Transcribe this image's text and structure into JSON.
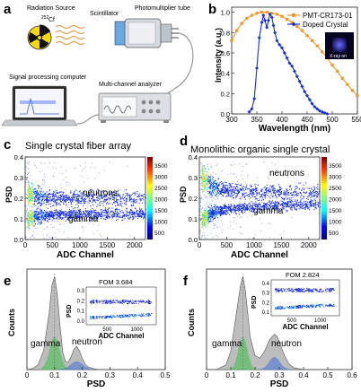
{
  "panels": {
    "a": {
      "label": "a",
      "radiation_source": "Radiation Source",
      "isotope_mass": "252",
      "isotope": "Cf",
      "scintillator": "Scintillator",
      "pmt": "Photomultiplier tube",
      "computer": "Signal processing computer",
      "analyzer": "Multi-channel analyzer"
    },
    "b": {
      "label": "b",
      "inset_text": "X-ray on",
      "colors": {
        "pmt": "#f0962c",
        "crystal": "#1a2fd0"
      }
    },
    "c": {
      "label": "c",
      "title": "Single crystal fiber array",
      "neutrons": "neutrons",
      "gamma": "gamma"
    },
    "d": {
      "label": "d",
      "title": "Monolithic organic single crystal",
      "neutrons": "neutrons",
      "gamma": "gamma"
    },
    "e": {
      "label": "e",
      "fom": "FOM 3.684",
      "gamma": "gamma",
      "neutron": "neutron"
    },
    "f": {
      "label": "f",
      "fom": "FOM 2.824",
      "gamma": "gamma",
      "neutron": "neutron"
    },
    "colorbar_ticks": [
      "3500",
      "3000",
      "2500",
      "2000",
      "1500",
      "1000",
      "500"
    ]
  },
  "chart_data": [
    {
      "panel": "b",
      "type": "line",
      "xlabel": "Wavelength (nm)",
      "ylabel": "Intensity (a.u.)",
      "xlim": [
        300,
        550
      ],
      "ylim": [
        0,
        1.05
      ],
      "xticks": [
        "300",
        "350",
        "400",
        "450",
        "500",
        "550"
      ],
      "yticks": [
        "0.0",
        "0.2",
        "0.4",
        "0.6",
        "0.8",
        "1.0"
      ],
      "legend": "top-right",
      "series": [
        {
          "name": "PMT-CR173-01",
          "x": [
            300,
            310,
            320,
            330,
            340,
            350,
            360,
            370,
            380,
            390,
            400,
            410,
            420,
            430,
            440,
            450,
            460,
            470,
            480,
            490,
            500,
            510,
            520,
            530,
            540,
            550
          ],
          "values": [
            0.72,
            0.82,
            0.89,
            0.94,
            0.97,
            0.99,
            1.0,
            1.0,
            0.99,
            0.98,
            0.96,
            0.93,
            0.9,
            0.86,
            0.82,
            0.77,
            0.72,
            0.67,
            0.61,
            0.55,
            0.48,
            0.42,
            0.35,
            0.29,
            0.23,
            0.18
          ]
        },
        {
          "name": "Doped Crystal",
          "x": [
            335,
            340,
            345,
            350,
            355,
            360,
            363,
            366,
            370,
            373,
            376,
            380,
            383,
            386,
            390,
            395,
            400,
            405,
            410,
            415,
            420,
            425,
            430,
            435,
            440,
            445,
            450,
            455,
            460,
            465,
            470,
            475,
            480,
            485,
            490
          ],
          "values": [
            0.02,
            0.05,
            0.15,
            0.45,
            0.75,
            0.9,
            0.97,
            0.92,
            0.85,
            0.92,
            0.98,
            0.95,
            0.87,
            0.8,
            0.72,
            0.68,
            0.65,
            0.6,
            0.55,
            0.5,
            0.47,
            0.42,
            0.37,
            0.32,
            0.27,
            0.22,
            0.18,
            0.14,
            0.1,
            0.07,
            0.05,
            0.03,
            0.02,
            0.01,
            0.0
          ]
        }
      ]
    },
    {
      "panel": "c",
      "type": "heatmap",
      "xlabel": "ADC Channel",
      "ylabel": "PSD",
      "xlim": [
        0,
        2200
      ],
      "ylim": [
        0,
        0.4
      ],
      "xticks": [
        "0",
        "500",
        "1000",
        "1500",
        "2000"
      ],
      "yticks": [
        "0.0",
        "0.1",
        "0.2",
        "0.3",
        "0.4"
      ],
      "bands": [
        {
          "name": "neutrons",
          "x": [
            50,
            200,
            500,
            1000,
            1500,
            2000,
            2200
          ],
          "psd": [
            0.22,
            0.21,
            0.205,
            0.2,
            0.2,
            0.2,
            0.2
          ]
        },
        {
          "name": "gamma",
          "x": [
            50,
            200,
            500,
            1000,
            1500,
            2000,
            2200
          ],
          "psd": [
            0.1,
            0.115,
            0.12,
            0.125,
            0.125,
            0.125,
            0.125
          ]
        }
      ]
    },
    {
      "panel": "d",
      "type": "heatmap",
      "xlabel": "ADC Channel",
      "ylabel": "PSD",
      "xlim": [
        0,
        2200
      ],
      "ylim": [
        0,
        0.4
      ],
      "xticks": [
        "0",
        "500",
        "1000",
        "1500",
        "2000"
      ],
      "yticks": [
        "0.0",
        "0.1",
        "0.2",
        "0.3",
        "0.4"
      ],
      "bands": [
        {
          "name": "neutrons",
          "x": [
            50,
            200,
            500,
            1000,
            1500,
            2000,
            2200
          ],
          "psd": [
            0.3,
            0.26,
            0.24,
            0.23,
            0.23,
            0.23,
            0.23
          ]
        },
        {
          "name": "gamma",
          "x": [
            50,
            200,
            500,
            1000,
            1500,
            2000,
            2200
          ],
          "psd": [
            0.1,
            0.13,
            0.15,
            0.16,
            0.17,
            0.17,
            0.17
          ]
        }
      ]
    },
    {
      "panel": "e",
      "type": "area",
      "xlabel": "PSD",
      "ylabel": "Counts",
      "xlim": [
        0,
        0.5
      ],
      "xticks": [
        "0",
        "0.1",
        "0.2",
        "0.3",
        "0.4",
        "0.5"
      ],
      "histogram": {
        "x": [
          0.0,
          0.02,
          0.04,
          0.06,
          0.08,
          0.09,
          0.1,
          0.11,
          0.12,
          0.13,
          0.14,
          0.15,
          0.16,
          0.17,
          0.18,
          0.19,
          0.2,
          0.21,
          0.22,
          0.24,
          0.26,
          0.3,
          0.4,
          0.5
        ],
        "values": [
          0.0,
          0.01,
          0.05,
          0.2,
          0.6,
          0.9,
          1.0,
          0.8,
          0.45,
          0.18,
          0.08,
          0.08,
          0.14,
          0.22,
          0.25,
          0.2,
          0.12,
          0.06,
          0.03,
          0.01,
          0.0,
          0.0,
          0.0,
          0.0
        ]
      },
      "inset": {
        "xlabel": "ADC Channel",
        "ylabel": "PSD",
        "xticks": [
          "500",
          "1000"
        ],
        "yticks": [
          "0.0",
          "0.1",
          "0.2",
          "0.3"
        ]
      }
    },
    {
      "panel": "f",
      "type": "area",
      "xlabel": "PSD",
      "ylabel": "Counts",
      "xlim": [
        0,
        0.6
      ],
      "xticks": [
        "0",
        "0.1",
        "0.2",
        "0.3",
        "0.4",
        "0.5",
        "0.6"
      ],
      "histogram": {
        "x": [
          0.0,
          0.04,
          0.08,
          0.1,
          0.12,
          0.14,
          0.15,
          0.16,
          0.17,
          0.18,
          0.2,
          0.22,
          0.24,
          0.26,
          0.28,
          0.29,
          0.3,
          0.32,
          0.34,
          0.36,
          0.4,
          0.5,
          0.6
        ],
        "values": [
          0.0,
          0.0,
          0.05,
          0.2,
          0.55,
          0.9,
          1.0,
          0.85,
          0.6,
          0.35,
          0.15,
          0.12,
          0.2,
          0.32,
          0.38,
          0.36,
          0.3,
          0.16,
          0.06,
          0.02,
          0.0,
          0.0,
          0.0
        ]
      },
      "inset": {
        "xlabel": "ADC Channel",
        "ylabel": "PSD",
        "xticks": [
          "500",
          "1000"
        ],
        "yticks": [
          "0.1",
          "0.2",
          "0.3",
          "0.4"
        ]
      }
    }
  ]
}
